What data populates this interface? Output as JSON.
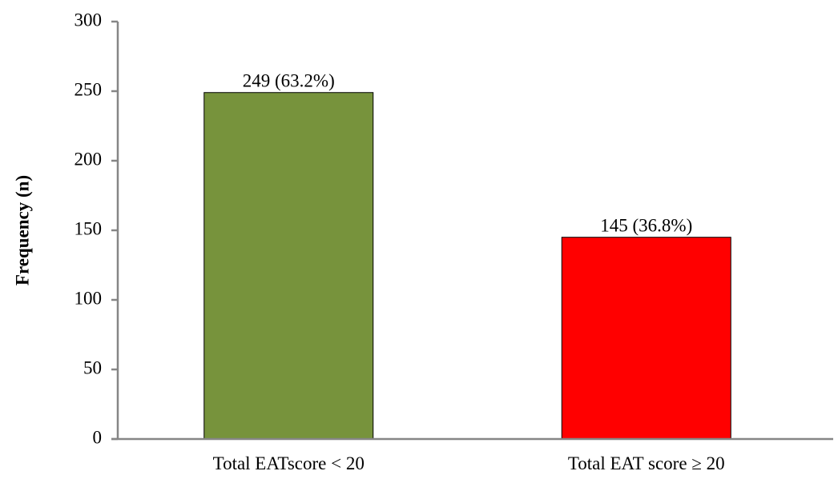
{
  "chart_data": {
    "type": "bar",
    "title": "",
    "xlabel": "",
    "ylabel": "Frequency (n)",
    "ylim": [
      0,
      300
    ],
    "yticks": [
      0,
      50,
      100,
      150,
      200,
      250,
      300
    ],
    "grid": false,
    "legend": "none",
    "categories": [
      "Total EATscore < 20",
      "Total EAT score ≥ 20"
    ],
    "values": [
      249,
      145
    ],
    "data_labels": [
      "249 (63.2%)",
      "145 (36.8%)"
    ],
    "colors": [
      "#77933c",
      "#ff0000"
    ]
  }
}
